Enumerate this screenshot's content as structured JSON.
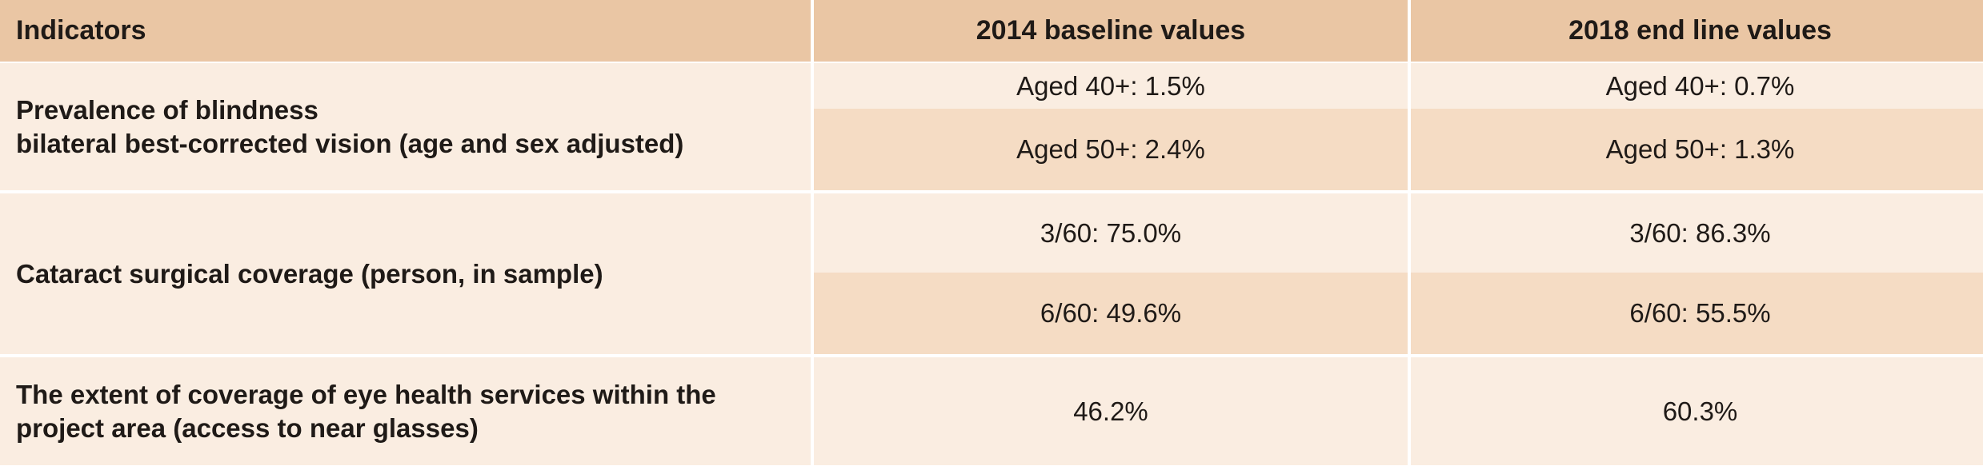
{
  "header": {
    "indicators": "Indicators",
    "baseline": "2014 baseline values",
    "endline": "2018 end line values"
  },
  "rows": [
    {
      "indicator_line1": "Prevalence of blindness",
      "indicator_line2": "bilateral best-corrected vision (age and sex adjusted)",
      "sub": [
        {
          "baseline": "Aged 40+: 1.5%",
          "endline": "Aged 40+: 0.7%"
        },
        {
          "baseline": "Aged 50+: 2.4%",
          "endline": "Aged 50+: 1.3%"
        }
      ]
    },
    {
      "indicator_line1": "Cataract surgical coverage (person, in sample)",
      "sub": [
        {
          "baseline": "3/60: 75.0%",
          "endline": "3/60: 86.3%"
        },
        {
          "baseline": "6/60: 49.6%",
          "endline": "6/60: 55.5%"
        }
      ]
    },
    {
      "indicator_line1": "The extent of coverage of eye health services within the",
      "indicator_line2": "project area (access to near glasses)",
      "sub": [
        {
          "baseline": "46.2%",
          "endline": "60.3%"
        }
      ]
    }
  ],
  "colors": {
    "header_bg": "#eac6a4",
    "row_light": "#faede1",
    "row_dark": "#f5dcc4"
  }
}
